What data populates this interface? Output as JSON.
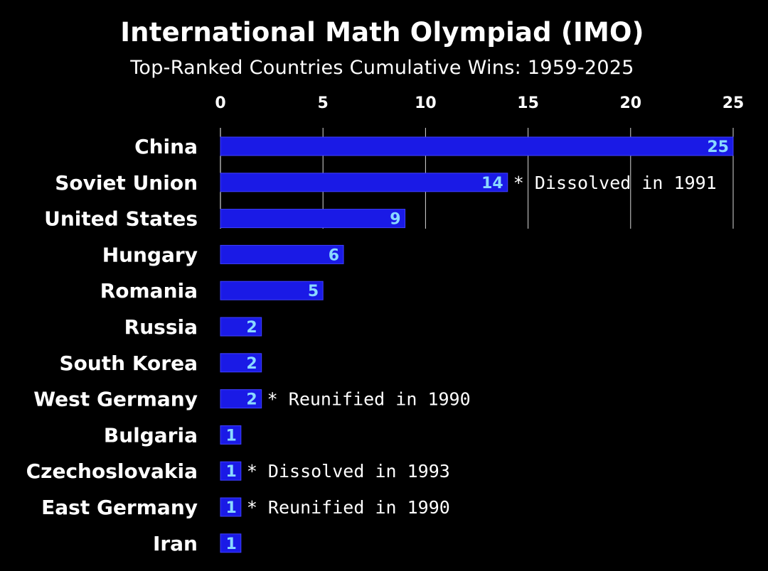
{
  "colors": {
    "background": "#000000",
    "bar": "#1a1ae6",
    "bar_edge": "#4040ff",
    "grid": "#ffffff",
    "text": "#ffffff",
    "value_text": "#8ad9ff"
  },
  "chart_data": {
    "type": "bar",
    "orientation": "horizontal",
    "title": "International Math Olympiad (IMO)",
    "subtitle": "Top-Ranked Countries Cumulative Wins: 1959-2025",
    "xlabel": "",
    "ylabel": "",
    "xlim": [
      0,
      25
    ],
    "x_ticks": [
      0,
      5,
      10,
      15,
      20,
      25
    ],
    "x_axis_position": "top",
    "grid": true,
    "categories": [
      "China",
      "Soviet Union",
      "United States",
      "Hungary",
      "Romania",
      "Russia",
      "South Korea",
      "West Germany",
      "Bulgaria",
      "Czechoslovakia",
      "East Germany",
      "Iran"
    ],
    "values": [
      25,
      14,
      9,
      6,
      5,
      2,
      2,
      2,
      1,
      1,
      1,
      1
    ],
    "annotations": [
      {
        "category": "Soviet Union",
        "text": "* Dissolved in 1991"
      },
      {
        "category": "West Germany",
        "text": "* Reunified in 1990"
      },
      {
        "category": "Czechoslovakia",
        "text": "* Dissolved in 1993"
      },
      {
        "category": "East Germany",
        "text": "* Reunified in 1990"
      }
    ]
  }
}
